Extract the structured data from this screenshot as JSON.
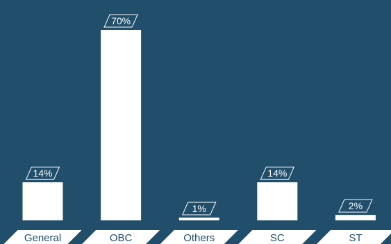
{
  "chart_data": {
    "type": "bar",
    "categories": [
      "General",
      "OBC",
      "Others",
      "SC",
      "ST"
    ],
    "values": [
      14,
      70,
      1,
      14,
      2
    ],
    "value_labels": [
      "14%",
      "70%",
      "1%",
      "14%",
      "2%"
    ],
    "title": "",
    "xlabel": "",
    "ylabel": "",
    "ylim": [
      0,
      70
    ],
    "grid": false,
    "legend": "none",
    "colors": {
      "background": "#214e6b",
      "bar": "#ffffff",
      "label_text": "#ffffff",
      "tab_fill": "#ffffff",
      "tab_text": "#214e6b"
    }
  }
}
